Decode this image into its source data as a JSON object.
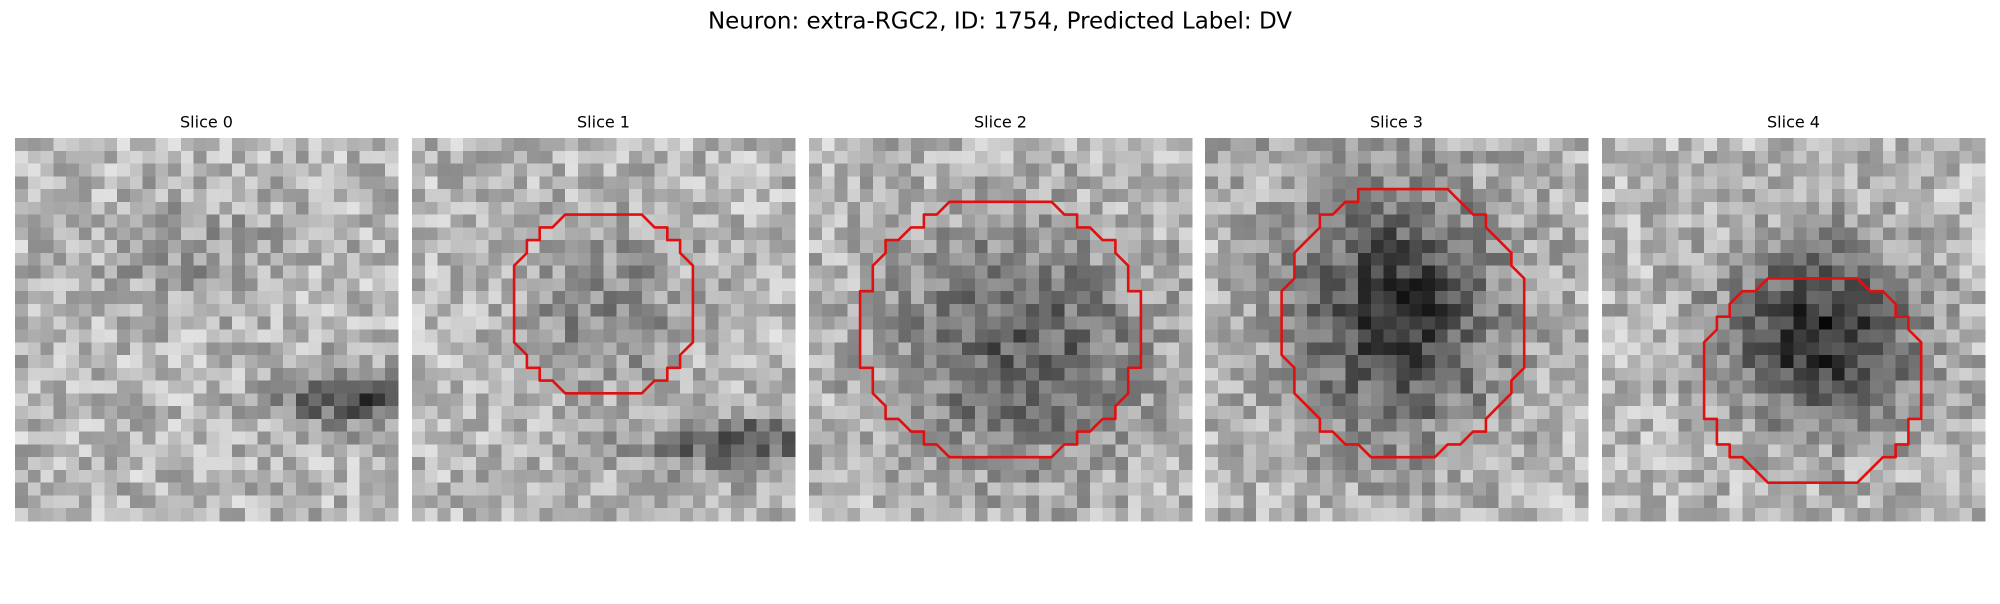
{
  "title": "Neuron: extra-RGC2, ID: 1754, Predicted Label: DV",
  "panels": [
    {
      "title": "Slice 0"
    },
    {
      "title": "Slice 1"
    },
    {
      "title": "Slice 2"
    },
    {
      "title": "Slice 3"
    },
    {
      "title": "Slice 4"
    }
  ]
}
